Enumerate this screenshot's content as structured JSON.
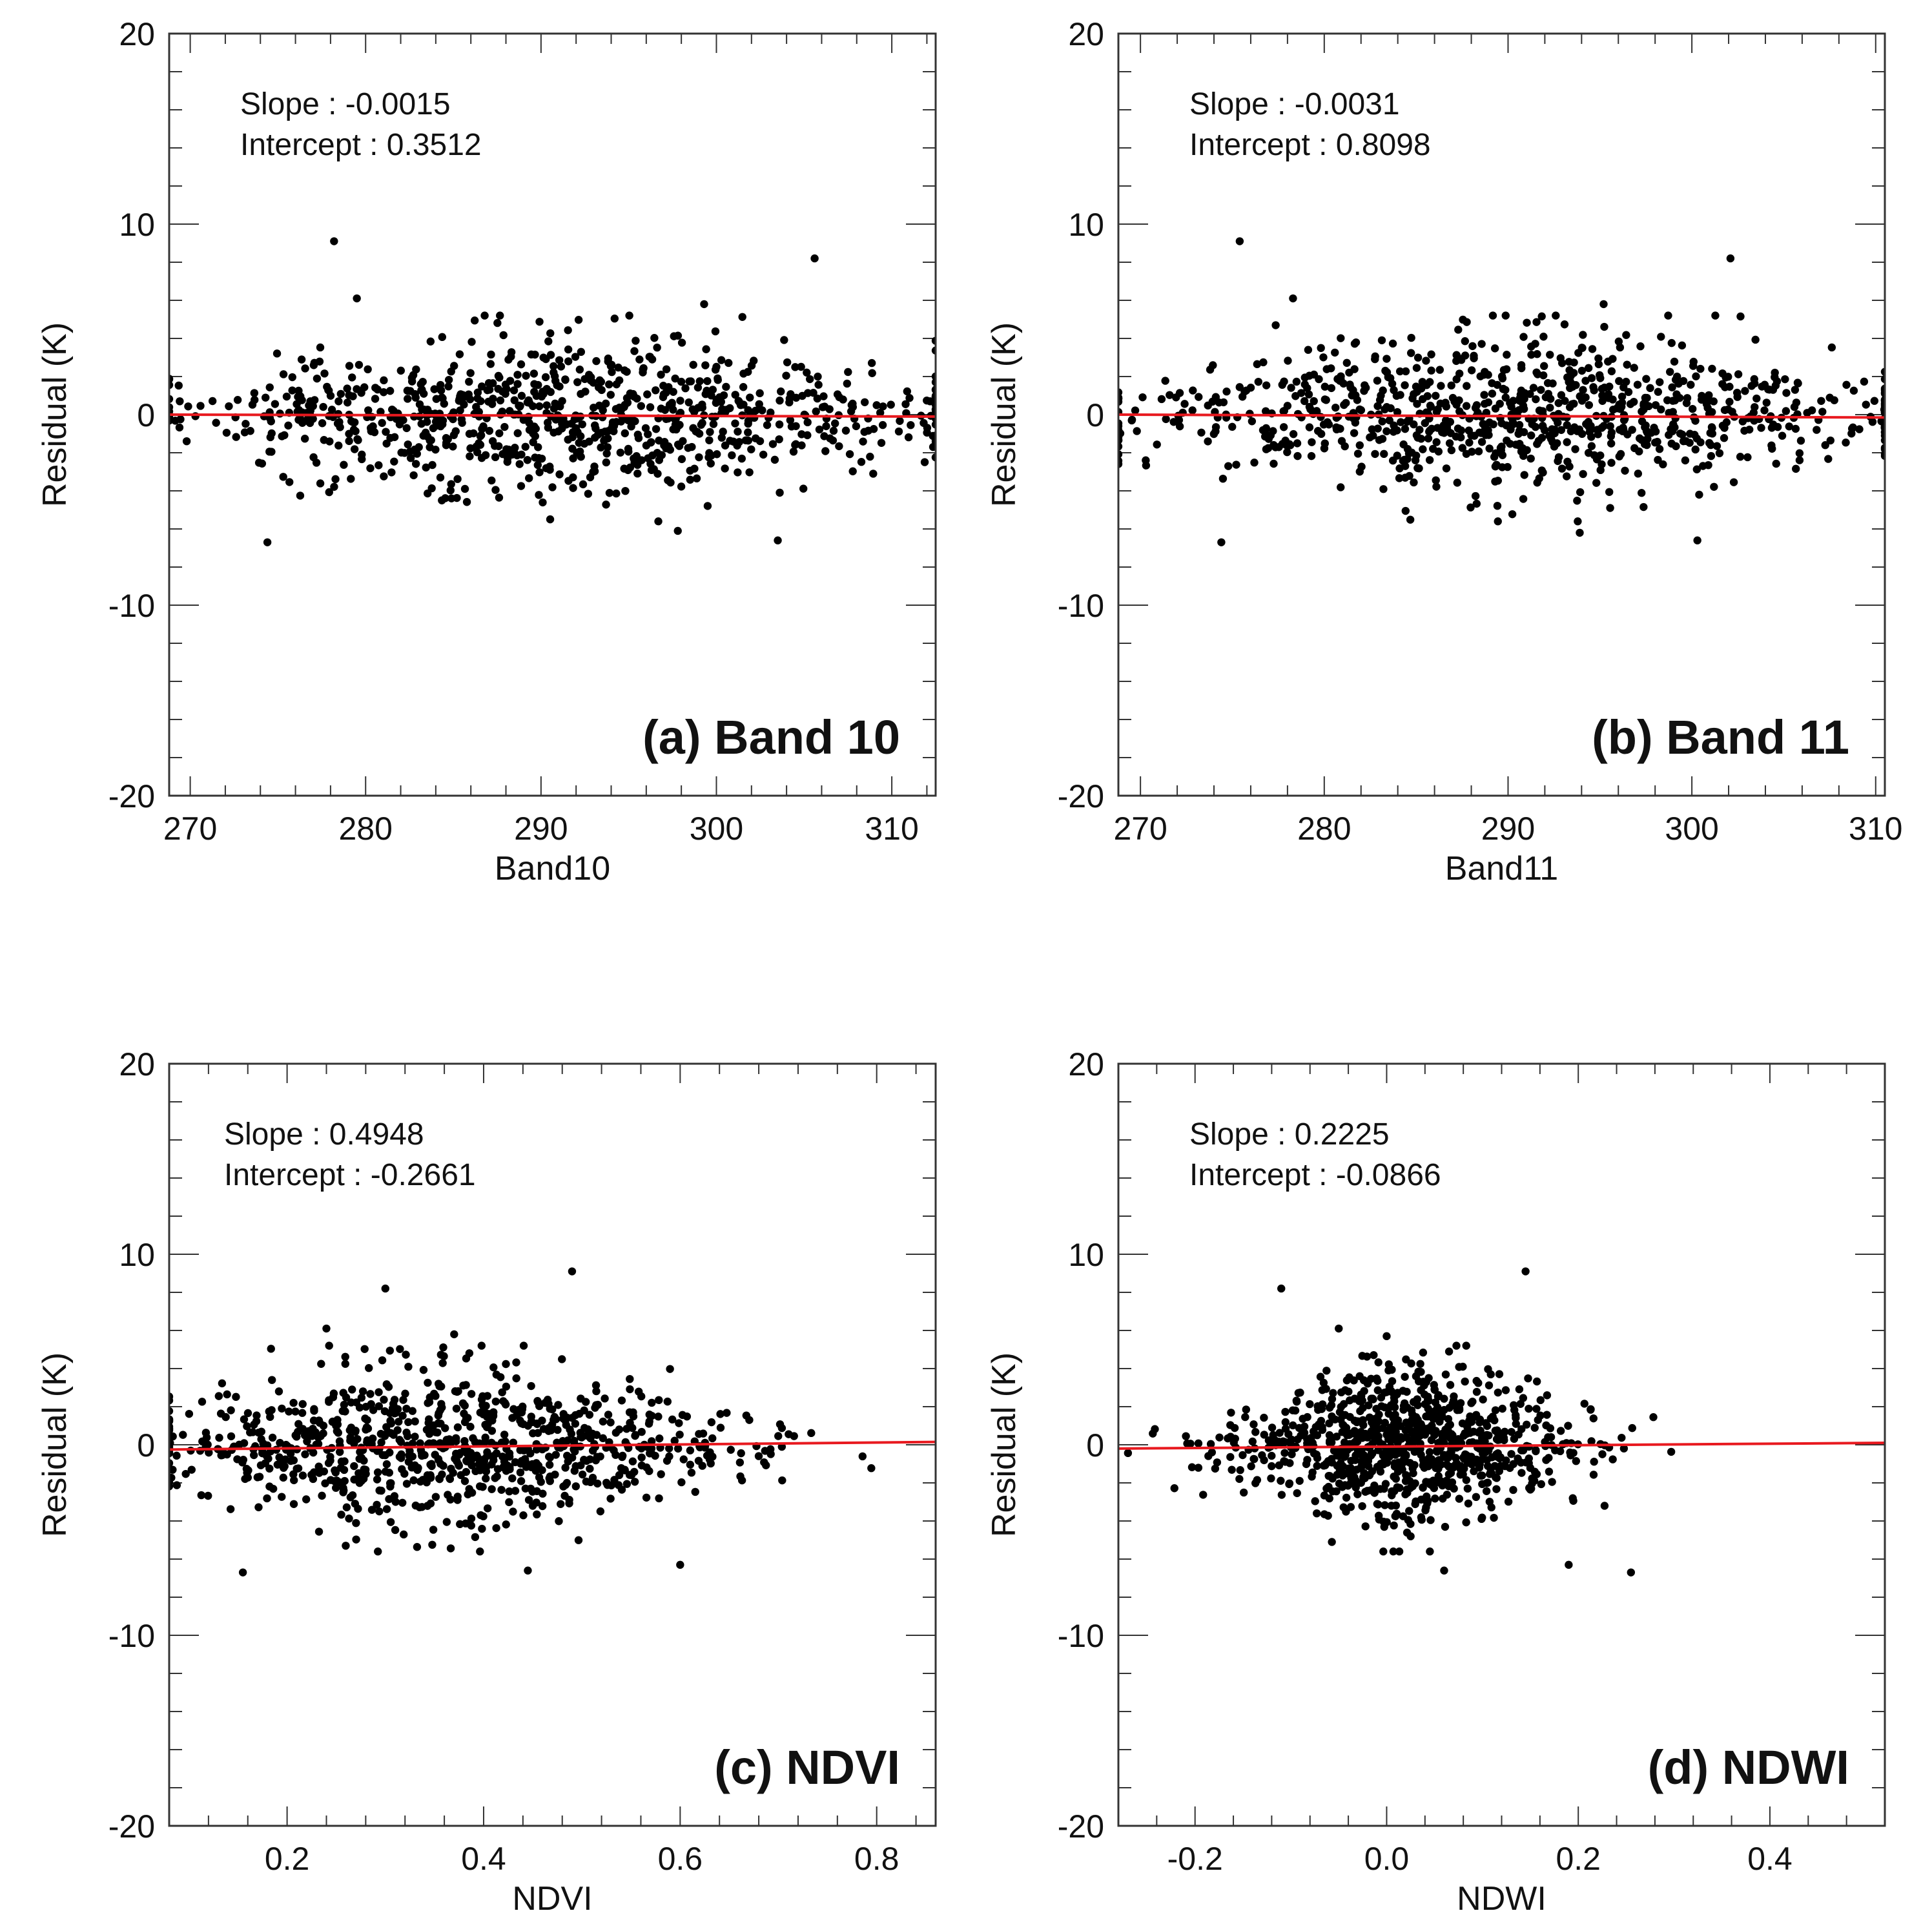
{
  "figure": {
    "caption": ""
  },
  "colors": {
    "axis": "#333333",
    "point": "#000000",
    "fit_line": "#e8191f",
    "background": "#ffffff"
  },
  "chart_data": [
    {
      "id": "a",
      "type": "scatter",
      "panel_label": "(a) Band 10",
      "xlabel": "Band10",
      "ylabel": "Residual (K)",
      "xlim": [
        268.8,
        312.5
      ],
      "ylim": [
        -20,
        20
      ],
      "xticks": [
        270,
        280,
        290,
        300,
        310
      ],
      "xtick_labels": [
        "270",
        "280",
        "290",
        "300",
        "310"
      ],
      "yticks": [
        20,
        10,
        0,
        -10,
        -20
      ],
      "ytick_labels": [
        "20",
        "10",
        "0",
        "-10",
        "-20"
      ],
      "annotation": {
        "slope_text": "Slope : -0.0015",
        "intercept_text": "Intercept : 0.3512"
      },
      "fit": {
        "slope": -0.0015,
        "intercept": 0.3512,
        "drawn_y": [
          0.0,
          -0.1
        ]
      },
      "n_points": 900,
      "x_center": 291,
      "x_spread": 10.5,
      "y_spread": 2.3,
      "seed": 11,
      "outliers": [
        [
          278.2,
          9.1
        ],
        [
          305.6,
          8.2
        ],
        [
          279.5,
          6.1
        ],
        [
          274.4,
          -6.7
        ],
        [
          303.5,
          -6.6
        ],
        [
          297.8,
          -6.1
        ],
        [
          299.3,
          5.8
        ]
      ]
    },
    {
      "id": "b",
      "type": "scatter",
      "panel_label": "(b) Band 11",
      "xlabel": "Band11",
      "ylabel": "Residual (K)",
      "xlim": [
        268.8,
        310.5
      ],
      "ylim": [
        -20,
        20
      ],
      "xticks": [
        270,
        280,
        290,
        300,
        310
      ],
      "xtick_labels": [
        "270",
        "280",
        "290",
        "300",
        "310"
      ],
      "yticks": [
        20,
        10,
        0,
        -10,
        -20
      ],
      "ytick_labels": [
        "20",
        "10",
        "0",
        "-10",
        "-20"
      ],
      "annotation": {
        "slope_text": "Slope : -0.0031",
        "intercept_text": "Intercept : 0.8098"
      },
      "fit": {
        "slope": -0.0031,
        "intercept": 0.8098,
        "drawn_y": [
          0.0,
          -0.15
        ]
      },
      "n_points": 900,
      "x_center": 290,
      "x_spread": 10.0,
      "y_spread": 2.3,
      "seed": 23,
      "outliers": [
        [
          275.4,
          9.1
        ],
        [
          302.1,
          8.2
        ],
        [
          278.3,
          6.1
        ],
        [
          274.4,
          -6.7
        ],
        [
          300.3,
          -6.6
        ],
        [
          293.9,
          -6.2
        ],
        [
          295.2,
          5.8
        ]
      ]
    },
    {
      "id": "c",
      "type": "scatter",
      "panel_label": "(c) NDVI",
      "xlabel": "NDVI",
      "ylabel": "Residual (K)",
      "xlim": [
        0.08,
        0.86
      ],
      "ylim": [
        -20,
        20
      ],
      "xticks": [
        0.2,
        0.4,
        0.6,
        0.8
      ],
      "xtick_labels": [
        "0.2",
        "0.4",
        "0.6",
        "0.8"
      ],
      "yticks": [
        20,
        10,
        0,
        -10,
        -20
      ],
      "ytick_labels": [
        "20",
        "10",
        "0",
        "-10",
        "-20"
      ],
      "annotation": {
        "slope_text": "Slope : 0.4948",
        "intercept_text": "Intercept : -0.2661"
      },
      "fit": {
        "slope": 0.4948,
        "intercept": -0.2661,
        "drawn_y": [
          -0.25,
          0.15
        ]
      },
      "n_points": 900,
      "x_center": 0.36,
      "x_spread": 0.15,
      "y_spread": 2.3,
      "seed": 37,
      "outliers": [
        [
          0.49,
          9.1
        ],
        [
          0.3,
          8.2
        ],
        [
          0.24,
          6.1
        ],
        [
          0.155,
          -6.7
        ],
        [
          0.445,
          -6.6
        ],
        [
          0.6,
          -6.3
        ],
        [
          0.37,
          5.8
        ]
      ]
    },
    {
      "id": "d",
      "type": "scatter",
      "panel_label": "(d) NDWI",
      "xlabel": "NDWI",
      "ylabel": "Residual (K)",
      "xlim": [
        -0.28,
        0.52
      ],
      "ylim": [
        -20,
        20
      ],
      "xticks": [
        -0.2,
        0.0,
        0.2,
        0.4
      ],
      "xtick_labels": [
        "-0.2",
        "0.0",
        "0.2",
        "0.4"
      ],
      "yticks": [
        20,
        10,
        0,
        -10,
        -20
      ],
      "ytick_labels": [
        "20",
        "10",
        "0",
        "-10",
        "-20"
      ],
      "annotation": {
        "slope_text": "Slope : 0.2225",
        "intercept_text": "Intercept : -0.0866"
      },
      "fit": {
        "slope": 0.2225,
        "intercept": -0.0866,
        "drawn_y": [
          -0.2,
          0.1
        ]
      },
      "n_points": 900,
      "x_center": 0.02,
      "x_spread": 0.085,
      "y_spread": 2.3,
      "seed": 53,
      "outliers": [
        [
          0.145,
          9.1
        ],
        [
          -0.11,
          8.2
        ],
        [
          -0.05,
          6.1
        ],
        [
          0.255,
          -6.7
        ],
        [
          0.19,
          -6.3
        ],
        [
          0.06,
          -6.6
        ],
        [
          0.0,
          5.7
        ]
      ]
    }
  ]
}
